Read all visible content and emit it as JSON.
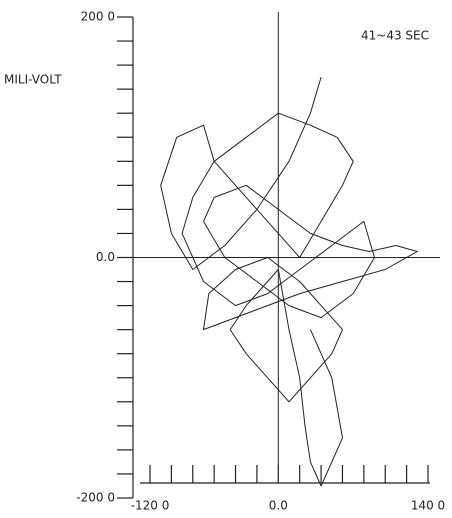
{
  "chart_data": {
    "type": "line",
    "annotation": "41~43 SEC",
    "y_label": "MILI-VOLT",
    "xlim": [
      -120,
      140
    ],
    "ylim": [
      -200,
      200
    ],
    "xticks": [
      {
        "value": -120,
        "label": "-120 0"
      },
      {
        "value": 0,
        "label": "0.0"
      },
      {
        "value": 140,
        "label": "140 0"
      }
    ],
    "yticks": [
      {
        "value": 200,
        "label": "200 0"
      },
      {
        "value": 0,
        "label": "0.0"
      },
      {
        "value": -200,
        "label": "-200 0"
      }
    ],
    "xminorticks": [
      -120,
      -100,
      -80,
      -60,
      -40,
      -20,
      0,
      20,
      40,
      60,
      80,
      100,
      120,
      140
    ],
    "yminorticks": [
      -200,
      -180,
      -160,
      -140,
      -120,
      -100,
      -80,
      -60,
      -40,
      -20,
      0,
      20,
      40,
      60,
      80,
      100,
      120,
      140,
      160,
      180,
      200
    ],
    "series": [
      {
        "color": "#222222",
        "x": [
          40,
          30,
          10,
          -20,
          -50,
          -80,
          -100,
          -110,
          -95,
          -70,
          -60,
          -40,
          -20,
          0,
          20,
          40,
          60,
          70,
          55,
          30,
          0,
          -30,
          -60,
          -80,
          -90,
          -70,
          -40,
          -10,
          20,
          50,
          80,
          90,
          70,
          40,
          10,
          -20,
          -50,
          -70,
          -60,
          -30,
          0,
          30,
          60,
          85,
          110,
          130,
          100,
          60,
          20,
          -10,
          -40,
          -70,
          -65,
          -40,
          -10,
          20,
          40,
          60,
          50,
          30,
          10,
          -10,
          -30,
          -45,
          -30,
          -10,
          0,
          10,
          20,
          25,
          30,
          40,
          60,
          50,
          30
        ],
        "values": [
          150,
          120,
          80,
          40,
          10,
          -10,
          20,
          60,
          100,
          110,
          80,
          60,
          40,
          20,
          0,
          30,
          60,
          80,
          100,
          110,
          120,
          100,
          80,
          50,
          20,
          -20,
          -40,
          -30,
          -10,
          10,
          30,
          0,
          -30,
          -50,
          -40,
          -20,
          0,
          30,
          50,
          60,
          40,
          20,
          10,
          5,
          10,
          5,
          -10,
          -20,
          -30,
          -40,
          -50,
          -60,
          -30,
          -10,
          0,
          -20,
          -40,
          -60,
          -80,
          -100,
          -120,
          -100,
          -80,
          -60,
          -40,
          -20,
          -10,
          -60,
          -100,
          -140,
          -170,
          -190,
          -150,
          -100,
          -60
        ]
      }
    ]
  }
}
